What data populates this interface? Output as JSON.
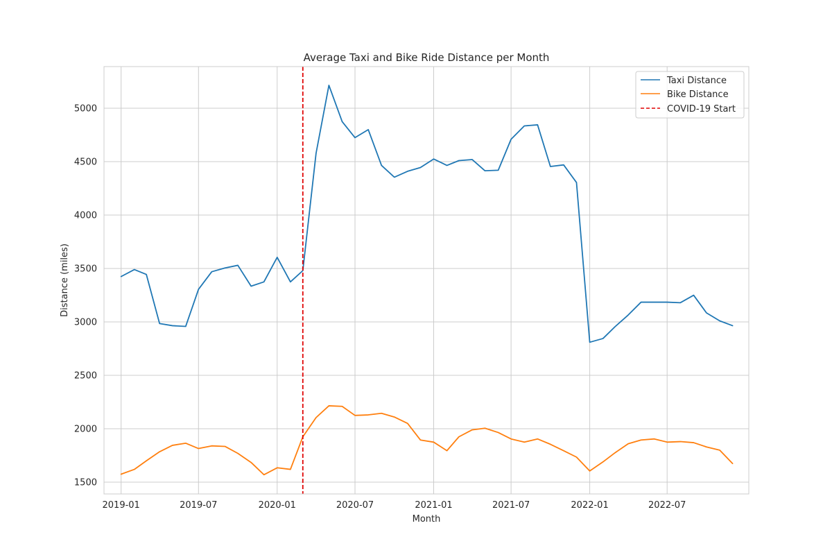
{
  "chart_data": {
    "type": "line",
    "title": "Average Taxi and Bike Ride Distance per Month",
    "xlabel": "Month",
    "ylabel": "Distance (miles)",
    "x": [
      "2019-01",
      "2019-02",
      "2019-03",
      "2019-04",
      "2019-05",
      "2019-06",
      "2019-07",
      "2019-08",
      "2019-09",
      "2019-10",
      "2019-11",
      "2019-12",
      "2020-01",
      "2020-02",
      "2020-03",
      "2020-04",
      "2020-05",
      "2020-06",
      "2020-07",
      "2020-08",
      "2020-09",
      "2020-10",
      "2020-11",
      "2020-12",
      "2021-01",
      "2021-02",
      "2021-03",
      "2021-04",
      "2021-05",
      "2021-06",
      "2021-07",
      "2021-08",
      "2021-09",
      "2021-10",
      "2021-11",
      "2021-12",
      "2022-01",
      "2022-02",
      "2022-03",
      "2022-04",
      "2022-05",
      "2022-06",
      "2022-07",
      "2022-08",
      "2022-09",
      "2022-10",
      "2022-11",
      "2022-12"
    ],
    "x_ticks": [
      "2019-01",
      "2019-07",
      "2020-01",
      "2020-07",
      "2021-01",
      "2021-07",
      "2022-01",
      "2022-07"
    ],
    "xlim": [
      "2018-11-22",
      "2023-01-08"
    ],
    "y_ticks": [
      1500,
      2000,
      2500,
      3000,
      3500,
      4000,
      4500,
      5000
    ],
    "ylim": [
      1390,
      5390
    ],
    "grid": true,
    "legend_position": "top-right",
    "series": [
      {
        "name": "Taxi Distance",
        "color": "#1f77b4",
        "style": "solid",
        "values": [
          3425,
          3490,
          3445,
          2985,
          2965,
          2958,
          3305,
          3470,
          3505,
          3530,
          3335,
          3375,
          3605,
          3375,
          3480,
          4580,
          5215,
          4875,
          4725,
          4800,
          4465,
          4355,
          4410,
          4445,
          4525,
          4465,
          4510,
          4520,
          4415,
          4420,
          4710,
          4835,
          4845,
          4455,
          4470,
          4305,
          2810,
          2845,
          2955,
          3065,
          3185,
          3185,
          3185,
          3180,
          3250,
          3085,
          3010,
          2965
        ]
      },
      {
        "name": "Bike Distance",
        "color": "#ff7f0e",
        "style": "solid",
        "values": [
          1575,
          1620,
          1700,
          1785,
          1845,
          1865,
          1815,
          1840,
          1835,
          1770,
          1685,
          1570,
          1635,
          1620,
          1925,
          2105,
          2215,
          2210,
          2125,
          2130,
          2145,
          2110,
          2050,
          1895,
          1875,
          1795,
          1925,
          1990,
          2005,
          1965,
          1905,
          1875,
          1905,
          1855,
          1795,
          1735,
          1605,
          1690,
          1775,
          1860,
          1895,
          1905,
          1875,
          1880,
          1870,
          1830,
          1800,
          1675
        ]
      }
    ],
    "vline": {
      "name": "COVID-19 Start",
      "x": "2020-03-01",
      "color": "#e00000",
      "style": "dashed"
    }
  }
}
